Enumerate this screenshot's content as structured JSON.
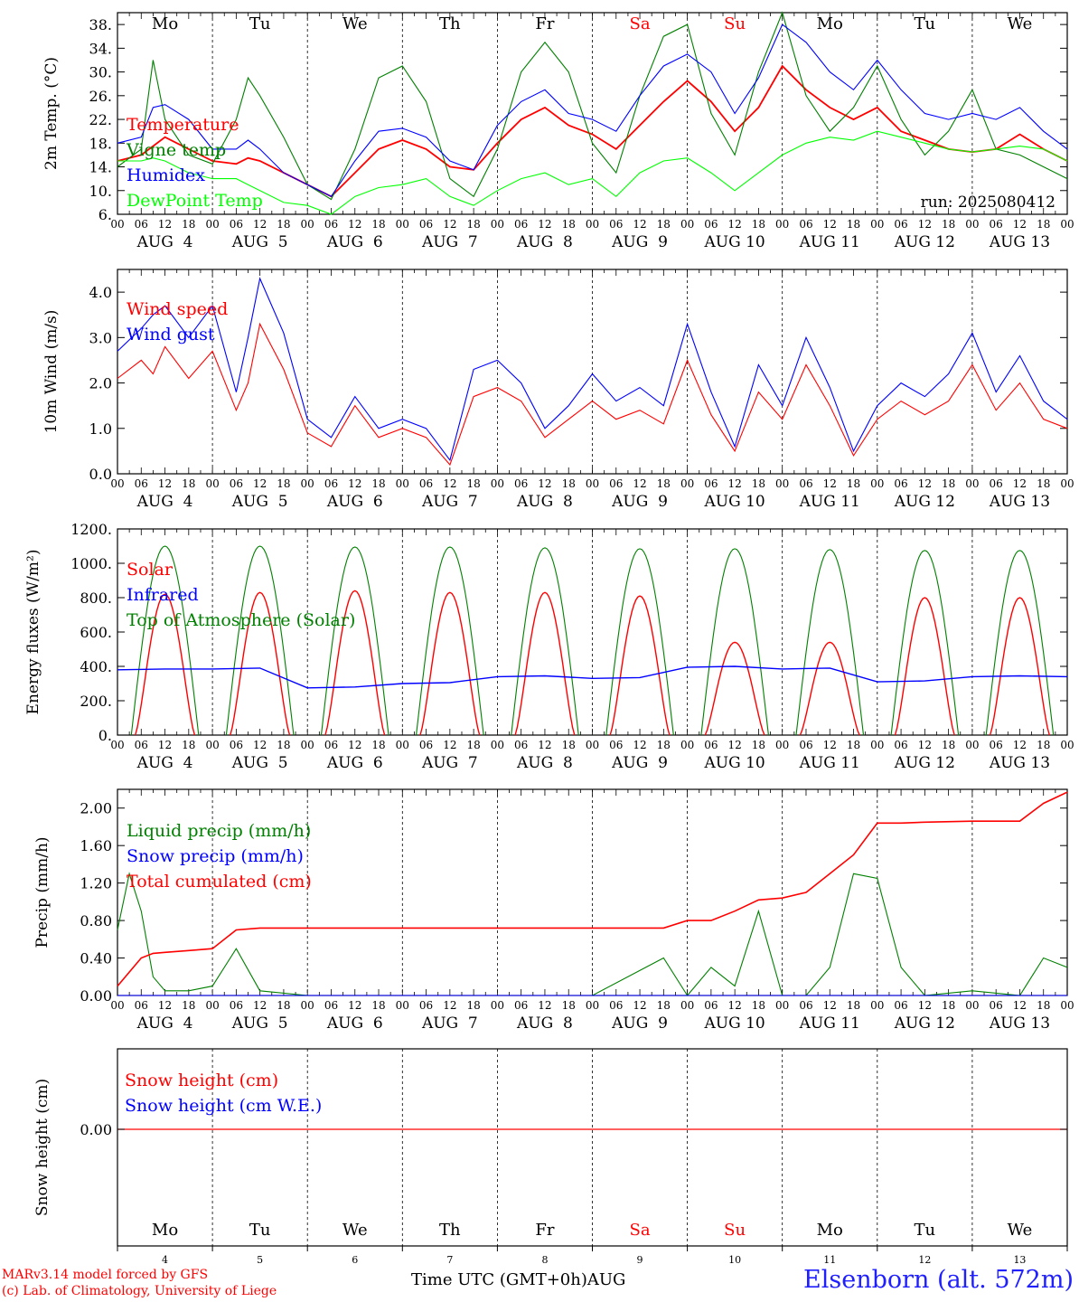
{
  "chart_data": [
    {
      "type": "line",
      "ylabel": "2m Temp. (°C)",
      "ylim": [
        6,
        40
      ],
      "yticks": [
        "6.",
        "10.",
        "14.",
        "18.",
        "22.",
        "26.",
        "30.",
        "34.",
        "38."
      ],
      "run_label": "run: 2025080412",
      "x_hours": [
        0,
        6,
        9,
        12,
        18,
        24,
        30,
        33,
        36,
        42,
        48,
        54,
        60,
        66,
        72,
        78,
        84,
        90,
        96,
        102,
        108,
        114,
        120,
        126,
        132,
        138,
        144,
        150,
        156,
        162,
        168,
        174,
        180,
        186,
        192,
        198,
        204,
        210,
        216,
        222,
        228,
        234,
        240
      ],
      "series": [
        {
          "name": "Temperature",
          "color": "#ff0000",
          "values": [
            15,
            16,
            17.5,
            19,
            17,
            15,
            14.5,
            15.5,
            15,
            13,
            11,
            9,
            13,
            17,
            18.5,
            17,
            14,
            13.5,
            18,
            22,
            24,
            21,
            19.5,
            17,
            21,
            25,
            28.5,
            25,
            20,
            24,
            31,
            27,
            24,
            22,
            24,
            20,
            18.5,
            17,
            16.5,
            17,
            19.5,
            17,
            15
          ]
        },
        {
          "name": "Vigne temp",
          "color": "#008000",
          "values": [
            14,
            17,
            32,
            22,
            16,
            14.5,
            22,
            29,
            26,
            19,
            11,
            8.5,
            17,
            29,
            31,
            25,
            12,
            9,
            17,
            30,
            35,
            30,
            18,
            13,
            26,
            36,
            38,
            23,
            16,
            30,
            40,
            26,
            20,
            24,
            31,
            22,
            16,
            20,
            27,
            17,
            16,
            14,
            12
          ]
        },
        {
          "name": "Humidex",
          "color": "#0000ff",
          "values": [
            18,
            19,
            24,
            24.5,
            22,
            17,
            17,
            18.5,
            17,
            13,
            11,
            9,
            15,
            20,
            20.5,
            19,
            15,
            13.5,
            21,
            25,
            27,
            23,
            22,
            20,
            26,
            31,
            33,
            30,
            23,
            29,
            38,
            35,
            30,
            27,
            32,
            27,
            23,
            22,
            23,
            22,
            24,
            20,
            17
          ]
        },
        {
          "name": "DewPoint Temp",
          "color": "#00ff00",
          "values": [
            15,
            15,
            15.5,
            15,
            13,
            12,
            12,
            11,
            10,
            8,
            7.5,
            6,
            9,
            10.5,
            11,
            12,
            9,
            7.5,
            10,
            12,
            13,
            11,
            12,
            9,
            13,
            15,
            15.5,
            13,
            10,
            13,
            16,
            18,
            19,
            18.5,
            20,
            19,
            18,
            17,
            16.5,
            17,
            17.5,
            17,
            15
          ]
        }
      ],
      "day_labels": [
        "Mo",
        "Tu",
        "We",
        "Th",
        "Fr",
        "Sa",
        "Su",
        "Mo",
        "Tu",
        "We"
      ]
    },
    {
      "type": "line",
      "ylabel": "10m Wind (m/s)",
      "ylim": [
        0,
        4.5
      ],
      "yticks": [
        "0.0",
        "1.0",
        "2.0",
        "3.0",
        "4.0"
      ],
      "x_hours": [
        0,
        6,
        9,
        12,
        18,
        24,
        30,
        33,
        36,
        42,
        48,
        54,
        60,
        66,
        72,
        78,
        84,
        90,
        96,
        102,
        108,
        114,
        120,
        126,
        132,
        138,
        144,
        150,
        156,
        162,
        168,
        174,
        180,
        186,
        192,
        198,
        204,
        210,
        216,
        222,
        228,
        234,
        240
      ],
      "series": [
        {
          "name": "Wind speed",
          "color": "#ff0000",
          "values": [
            2.1,
            2.5,
            2.2,
            2.8,
            2.1,
            2.7,
            1.4,
            2.0,
            3.3,
            2.3,
            0.9,
            0.6,
            1.5,
            0.8,
            1.0,
            0.8,
            0.2,
            1.7,
            1.9,
            1.6,
            0.8,
            1.2,
            1.6,
            1.2,
            1.4,
            1.1,
            2.5,
            1.3,
            0.5,
            1.8,
            1.2,
            2.4,
            1.5,
            0.4,
            1.2,
            1.6,
            1.3,
            1.6,
            2.4,
            1.4,
            2.0,
            1.2,
            1.0
          ]
        },
        {
          "name": "Wind gust",
          "color": "#0000ff",
          "values": [
            2.7,
            3.2,
            3.5,
            3.7,
            3.0,
            3.7,
            1.8,
            3.0,
            4.3,
            3.1,
            1.2,
            0.8,
            1.7,
            1.0,
            1.2,
            1.0,
            0.3,
            2.3,
            2.5,
            2.0,
            1.0,
            1.5,
            2.2,
            1.6,
            1.9,
            1.5,
            3.3,
            1.8,
            0.6,
            2.4,
            1.5,
            3.0,
            1.9,
            0.5,
            1.5,
            2.0,
            1.7,
            2.2,
            3.1,
            1.8,
            2.6,
            1.6,
            1.2
          ]
        }
      ]
    },
    {
      "type": "line",
      "ylabel": "Energy fluxes (W/m²)",
      "ylim": [
        0,
        1200
      ],
      "yticks": [
        "0.",
        "200.",
        "400.",
        "600.",
        "800.",
        "1000.",
        "1200."
      ],
      "x_hours": [
        0,
        3,
        6,
        9,
        12,
        15,
        18,
        21,
        24
      ],
      "series": [
        {
          "name": "Solar",
          "color": "#ff0000",
          "day_peaks": [
            820,
            830,
            840,
            830,
            830,
            810,
            540,
            540,
            800,
            800
          ]
        },
        {
          "name": "Infrared",
          "color": "#0000ff",
          "values_by_day": [
            380,
            385,
            275,
            300,
            340,
            330,
            395,
            385,
            310,
            340
          ]
        },
        {
          "name": "Top of Atmosphere (Solar)",
          "color": "#008000",
          "day_peaks": [
            1100,
            1100,
            1095,
            1095,
            1090,
            1085,
            1085,
            1080,
            1075,
            1075
          ]
        }
      ]
    },
    {
      "type": "line",
      "ylabel": "Precip (mm/h)",
      "ylim": [
        0,
        2.2
      ],
      "yticks": [
        "0.00",
        "0.40",
        "0.80",
        "1.20",
        "1.60",
        "2.00"
      ],
      "x_hours": [
        0,
        3,
        6,
        9,
        12,
        18,
        24,
        30,
        36,
        48,
        72,
        96,
        120,
        138,
        144,
        150,
        156,
        162,
        168,
        174,
        180,
        186,
        192,
        198,
        204,
        216,
        228,
        234,
        240
      ],
      "series": [
        {
          "name": "Liquid precip (mm/h)",
          "color": "#008000",
          "values": [
            0.7,
            1.3,
            0.9,
            0.2,
            0.05,
            0.05,
            0.1,
            0.5,
            0.05,
            0,
            0,
            0,
            0,
            0.4,
            0,
            0.3,
            0.1,
            0.9,
            0,
            0,
            0.3,
            1.3,
            1.25,
            0.3,
            0.0,
            0.05,
            0.0,
            0.4,
            0.3
          ]
        },
        {
          "name": "Snow precip (mm/h)",
          "color": "#0000ff",
          "values": [
            0,
            0,
            0,
            0,
            0,
            0,
            0,
            0,
            0,
            0,
            0,
            0,
            0,
            0,
            0,
            0,
            0,
            0,
            0,
            0,
            0,
            0,
            0,
            0,
            0,
            0,
            0,
            0,
            0
          ]
        },
        {
          "name": "Total cumulated (cm)",
          "color": "#ff0000",
          "values": [
            0.1,
            0.25,
            0.4,
            0.45,
            0.46,
            0.48,
            0.5,
            0.7,
            0.72,
            0.72,
            0.72,
            0.72,
            0.72,
            0.72,
            0.8,
            0.8,
            0.9,
            1.02,
            1.04,
            1.1,
            1.3,
            1.5,
            1.84,
            1.84,
            1.85,
            1.86,
            1.86,
            2.05,
            2.17
          ]
        }
      ]
    },
    {
      "type": "line",
      "ylabel": "Snow height (cm)",
      "ytick": "0.00",
      "series": [
        {
          "name": "Snow height (cm)",
          "color": "#ff0000",
          "values": [
            0,
            0
          ]
        },
        {
          "name": "Snow height (cm W.E.)",
          "color": "#0000ff",
          "values": [
            0,
            0
          ]
        }
      ],
      "day_labels": [
        "Mo",
        "Tu",
        "We",
        "Th",
        "Fr",
        "Sa",
        "Su",
        "Mo",
        "Tu",
        "We"
      ],
      "day_numbers": [
        "4",
        "5",
        "6",
        "7",
        "8",
        "9",
        "10",
        "11",
        "12",
        "13"
      ]
    }
  ],
  "x_axis": {
    "hour_ticks": [
      "00",
      "06",
      "12",
      "18"
    ],
    "date_labels": [
      "AUG  4",
      "AUG  5",
      "AUG  6",
      "AUG  7",
      "AUG  8",
      "AUG  9",
      "AUG 10",
      "AUG 11",
      "AUG 12",
      "AUG 13"
    ],
    "weekend_color": "#ff0000",
    "weekend_days": [
      "Sa",
      "Su"
    ]
  },
  "footer": {
    "credit_line1": "MARv3.14 model forced by GFS",
    "credit_line2": "(c) Lab. of Climatology, University of Liege",
    "axis_title": "Time UTC (GMT+0h)",
    "axis_month": "AUG",
    "station": "Elsenborn (alt. 572m)"
  }
}
